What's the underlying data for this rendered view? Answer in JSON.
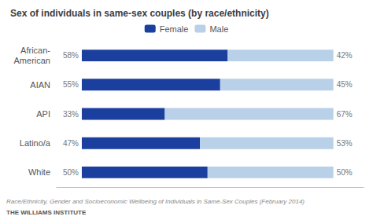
{
  "chart_data": {
    "type": "bar",
    "orientation": "horizontal",
    "stacked": true,
    "title": "Sex of individuals in same-sex couples (by race/ethnicity)",
    "annotations": [
      "Race/Ethnicity, Gender and Socioeconomic Wellbeing of Individuals in Same-Sex Couples (February 2014)",
      "THE WILLIAMS INSTITUTE"
    ],
    "categories": [
      "African-\nAmerican",
      "AIAN",
      "API",
      "Latino/a",
      "White"
    ],
    "series": [
      {
        "name": "Female",
        "color": "#1a3f9e",
        "values": [
          58,
          55,
          33,
          47,
          50
        ],
        "value_labels": [
          "58%",
          "55%",
          "33%",
          "47%",
          "50%"
        ]
      },
      {
        "name": "Male",
        "color": "#b8d0e8",
        "values": [
          42,
          45,
          67,
          53,
          50
        ],
        "value_labels": [
          "42%",
          "45%",
          "67%",
          "53%",
          "50%"
        ]
      }
    ],
    "xlim": [
      -10,
      112
    ],
    "tick_labels": "y",
    "data_labels": true,
    "legend": "top",
    "grid": false
  }
}
